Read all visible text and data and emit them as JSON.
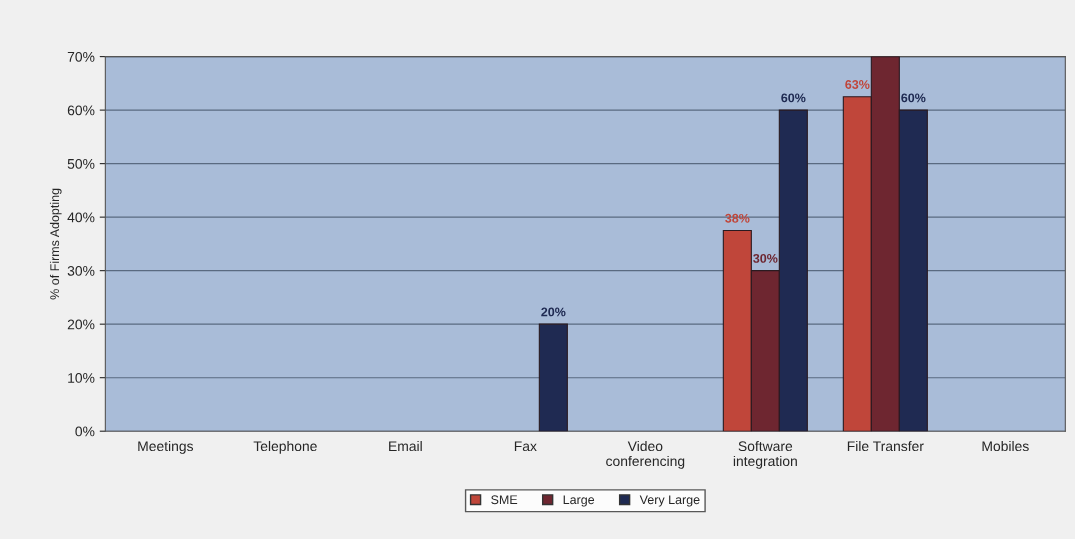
{
  "chart_data": {
    "type": "bar",
    "ylabel": "% of Firms Adopting",
    "categories": [
      "Meetings",
      "Telephone",
      "Email",
      "Fax",
      "Video\nconferencing",
      "Software\nintegration",
      "File Transfer",
      "Mobiles"
    ],
    "series": [
      {
        "name": "SME",
        "color": "#c0463a",
        "values": [
          0,
          0,
          0,
          0,
          0,
          37.5,
          62.5,
          0
        ],
        "value_labels": [
          null,
          null,
          null,
          null,
          null,
          "38%",
          "63%",
          null
        ]
      },
      {
        "name": "Large",
        "color": "#6e2630",
        "values": [
          0,
          0,
          0,
          0,
          0,
          30,
          70,
          0
        ],
        "value_labels": [
          null,
          null,
          null,
          null,
          null,
          "30%",
          null,
          null
        ]
      },
      {
        "name": "Very Large",
        "color": "#1f2a52",
        "values": [
          0,
          0,
          0,
          20,
          0,
          60,
          60,
          0
        ],
        "value_labels": [
          null,
          null,
          null,
          "20%",
          null,
          "60%",
          "60%",
          null
        ]
      }
    ],
    "ylim": [
      0,
      70
    ],
    "yticks": [
      {
        "value": 0,
        "label": "0%"
      },
      {
        "value": 10,
        "label": "10%"
      },
      {
        "value": 20,
        "label": "20%"
      },
      {
        "value": 30,
        "label": "30%"
      },
      {
        "value": 40,
        "label": "40%"
      },
      {
        "value": 50,
        "label": "50%"
      },
      {
        "value": 60,
        "label": "60%"
      },
      {
        "value": 70,
        "label": "70%"
      }
    ],
    "grid": "y",
    "legend": "bottom"
  }
}
